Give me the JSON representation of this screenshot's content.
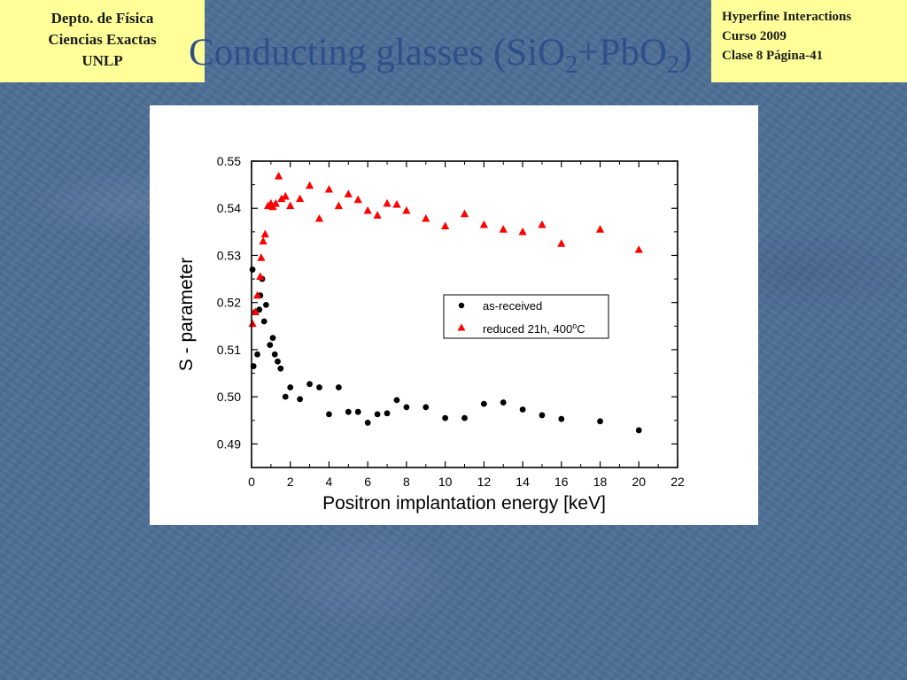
{
  "header": {
    "left_lines": [
      "Depto. de Física",
      "Ciencias Exactas",
      "UNLP"
    ],
    "right_lines": [
      "Hyperfine Interactions",
      "Curso 2009",
      "Clase 8  Página-41"
    ],
    "title_prefix": "Conducting glasses (SiO",
    "title_sub1": "2",
    "title_mid": "+PbO",
    "title_sub2": "2",
    "title_suffix": ")"
  },
  "colors": {
    "background": "#4f6f97",
    "corner_box": "#ffff99",
    "title": "#2f4f8a",
    "series_as_received": "#000000",
    "series_reduced": "#ff0000"
  },
  "chart_data": {
    "type": "scatter",
    "title": "",
    "xlabel": "Positron implantation energy [keV]",
    "ylabel": "S - parameter",
    "xlim": [
      0,
      22
    ],
    "ylim": [
      0.485,
      0.55
    ],
    "x_ticks": [
      "0",
      "2",
      "4",
      "6",
      "8",
      "10",
      "12",
      "14",
      "16",
      "18",
      "20",
      "22"
    ],
    "y_ticks": [
      "0.49",
      "0.50",
      "0.51",
      "0.52",
      "0.53",
      "0.54",
      "0.55"
    ],
    "legend_position": "center-right",
    "series": [
      {
        "name": "as-received",
        "marker": "circle",
        "color": "#000000",
        "points": [
          [
            0.05,
            0.527
          ],
          [
            0.1,
            0.5065
          ],
          [
            0.2,
            0.518
          ],
          [
            0.3,
            0.509
          ],
          [
            0.4,
            0.5185
          ],
          [
            0.45,
            0.5215
          ],
          [
            0.55,
            0.525
          ],
          [
            0.65,
            0.516
          ],
          [
            0.75,
            0.5195
          ],
          [
            0.95,
            0.511
          ],
          [
            1.1,
            0.5125
          ],
          [
            1.2,
            0.509
          ],
          [
            1.35,
            0.5075
          ],
          [
            1.5,
            0.506
          ],
          [
            1.75,
            0.5
          ],
          [
            2.0,
            0.502
          ],
          [
            2.5,
            0.4995
          ],
          [
            3.0,
            0.5027
          ],
          [
            3.5,
            0.502
          ],
          [
            4.0,
            0.4963
          ],
          [
            4.5,
            0.502
          ],
          [
            5.0,
            0.4968
          ],
          [
            5.5,
            0.4968
          ],
          [
            6.0,
            0.4945
          ],
          [
            6.5,
            0.4963
          ],
          [
            7.0,
            0.4965
          ],
          [
            7.5,
            0.4993
          ],
          [
            8.0,
            0.4978
          ],
          [
            9.0,
            0.4978
          ],
          [
            10.0,
            0.4955
          ],
          [
            11.0,
            0.4955
          ],
          [
            12.0,
            0.4985
          ],
          [
            13.0,
            0.4988
          ],
          [
            14.0,
            0.4973
          ],
          [
            15.0,
            0.4961
          ],
          [
            16.0,
            0.4953
          ],
          [
            18.0,
            0.4948
          ],
          [
            20.0,
            0.4929
          ]
        ]
      },
      {
        "name": "reduced 21h, 400",
        "name_sup": "o",
        "name_unit": "C",
        "marker": "triangle",
        "color": "#ff0000",
        "points": [
          [
            0.05,
            0.5155
          ],
          [
            0.2,
            0.518
          ],
          [
            0.3,
            0.5215
          ],
          [
            0.45,
            0.5255
          ],
          [
            0.5,
            0.5295
          ],
          [
            0.6,
            0.533
          ],
          [
            0.7,
            0.5345
          ],
          [
            0.85,
            0.5405
          ],
          [
            1.0,
            0.541
          ],
          [
            1.1,
            0.5403
          ],
          [
            1.25,
            0.541
          ],
          [
            1.4,
            0.5468
          ],
          [
            1.55,
            0.542
          ],
          [
            1.75,
            0.5425
          ],
          [
            2.0,
            0.5405
          ],
          [
            2.5,
            0.542
          ],
          [
            3.0,
            0.5448
          ],
          [
            3.5,
            0.5378
          ],
          [
            4.0,
            0.544
          ],
          [
            4.5,
            0.5405
          ],
          [
            5.0,
            0.543
          ],
          [
            5.5,
            0.5418
          ],
          [
            6.0,
            0.5395
          ],
          [
            6.5,
            0.5385
          ],
          [
            7.0,
            0.541
          ],
          [
            7.5,
            0.5408
          ],
          [
            8.0,
            0.5395
          ],
          [
            9.0,
            0.5378
          ],
          [
            10.0,
            0.5362
          ],
          [
            11.0,
            0.5388
          ],
          [
            12.0,
            0.5365
          ],
          [
            13.0,
            0.5355
          ],
          [
            14.0,
            0.535
          ],
          [
            15.0,
            0.5365
          ],
          [
            16.0,
            0.5325
          ],
          [
            18.0,
            0.5355
          ],
          [
            20.0,
            0.5312
          ]
        ]
      }
    ]
  }
}
